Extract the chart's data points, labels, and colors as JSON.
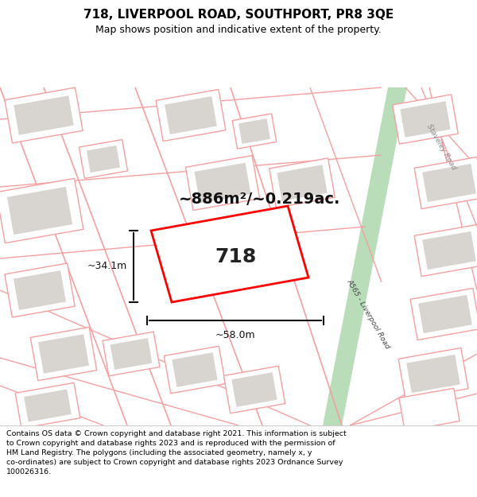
{
  "title_line1": "718, LIVERPOOL ROAD, SOUTHPORT, PR8 3QE",
  "title_line2": "Map shows position and indicative extent of the property.",
  "footer_text": "Contains OS data © Crown copyright and database right 2021. This information is subject to Crown copyright and database rights 2023 and is reproduced with the permission of HM Land Registry. The polygons (including the associated geometry, namely x, y co-ordinates) are subject to Crown copyright and database rights 2023 Ordnance Survey 100026316.",
  "map_bg": "#f7f6f4",
  "road_color": "#b8ddb8",
  "road_edge_color": "#8ec88e",
  "highlight_color": "#ff0000",
  "highlight_label": "718",
  "area_label": "~886m²/~0.219ac.",
  "dim_h_label": "~34.1m",
  "dim_w_label": "~58.0m",
  "road_label": "A565 - Liverpool Road",
  "staveley_label": "Staveley Road",
  "pink_line_color": "#f5a0a0",
  "gray_block_color": "#d8d4d0",
  "dim_color": "#111111",
  "footer_fontsize": 6.8,
  "title_fontsize": 11,
  "subtitle_fontsize": 9
}
